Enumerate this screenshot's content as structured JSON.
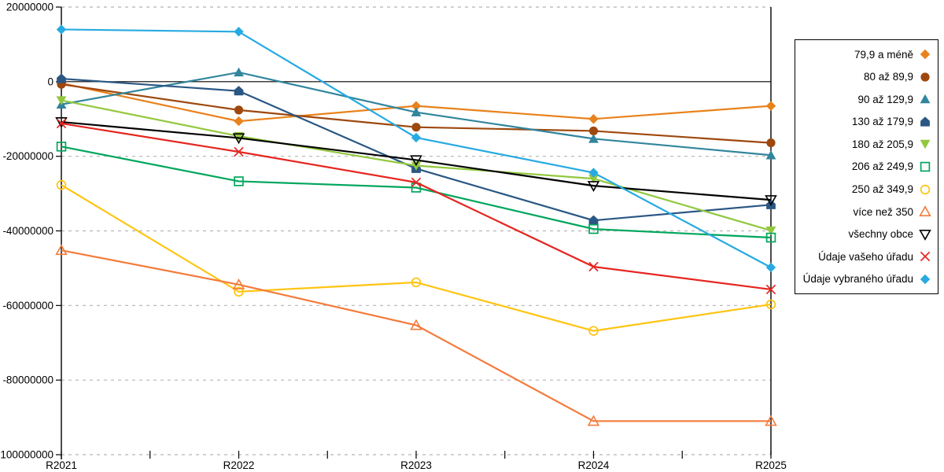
{
  "chart_data": {
    "type": "line",
    "title": "",
    "xlabel": "",
    "ylabel": "",
    "categories": [
      "R2021",
      "R2022",
      "R2023",
      "R2024",
      "R2025"
    ],
    "y_axis": {
      "min": -100000000,
      "max": 20000000,
      "tick_step": 20000000,
      "tick_values": [
        20000000,
        0,
        -20000000,
        -40000000,
        -60000000,
        -80000000,
        -100000000
      ],
      "tick_labels": [
        "20000000",
        "0",
        "-20000000",
        "-40000000",
        "-60000000",
        "-80000000",
        "-100000000"
      ]
    },
    "grid": "horizontal dashed gray lines at 20000000 steps; solid black line at 0",
    "legend_position": "right",
    "background_color": "#ffffff",
    "axis_color": "#000000",
    "gridline_color": "#b5b5b5",
    "series": [
      {
        "name": "79,9 a méně",
        "marker": "diamond",
        "color": "#E8821C",
        "values": [
          -400000,
          -10600000,
          -6500000,
          -10000000,
          -6500000
        ]
      },
      {
        "name": "80 až 89,9",
        "marker": "circle",
        "color": "#9E480E",
        "values": [
          -700000,
          -7600000,
          -12200000,
          -13200000,
          -16400000
        ]
      },
      {
        "name": "90 až 129,9",
        "marker": "triangle-up",
        "color": "#31859C",
        "values": [
          -6100000,
          2500000,
          -8200000,
          -15300000,
          -19700000
        ]
      },
      {
        "name": "130 až 179,9",
        "marker": "pentagon",
        "color": "#2A5784",
        "values": [
          800000,
          -2500000,
          -23300000,
          -37200000,
          -33000000
        ]
      },
      {
        "name": "180 až 205,9",
        "marker": "triangle-down",
        "color": "#92C83E",
        "values": [
          -5000000,
          -14600000,
          -22500000,
          -26000000,
          -39900000
        ]
      },
      {
        "name": "206 až 249,9",
        "marker": "square-open",
        "color": "#00A65D",
        "values": [
          -17400000,
          -26700000,
          -28400000,
          -39500000,
          -41800000
        ]
      },
      {
        "name": "250 až 349,9",
        "marker": "circle-open",
        "color": "#FFC412",
        "values": [
          -27700000,
          -56300000,
          -53800000,
          -66800000,
          -59700000
        ]
      },
      {
        "name": "více než 350",
        "marker": "triangle-up-open",
        "color": "#F47B3B",
        "values": [
          -45200000,
          -54400000,
          -65300000,
          -91000000,
          -91000000
        ]
      },
      {
        "name": "všechny obce",
        "marker": "triangle-down-open",
        "color": "#000000",
        "values": [
          -10800000,
          -15100000,
          -21000000,
          -27900000,
          -31700000
        ]
      },
      {
        "name": "Údaje vašeho úřadu",
        "marker": "x",
        "color": "#E52620",
        "values": [
          -11200000,
          -18800000,
          -27000000,
          -49600000,
          -55700000
        ]
      },
      {
        "name": "Údaje vybraného úřadu",
        "marker": "diamond",
        "color": "#27AAE1",
        "values": [
          14000000,
          13400000,
          -15000000,
          -24400000,
          -49800000
        ]
      }
    ]
  }
}
